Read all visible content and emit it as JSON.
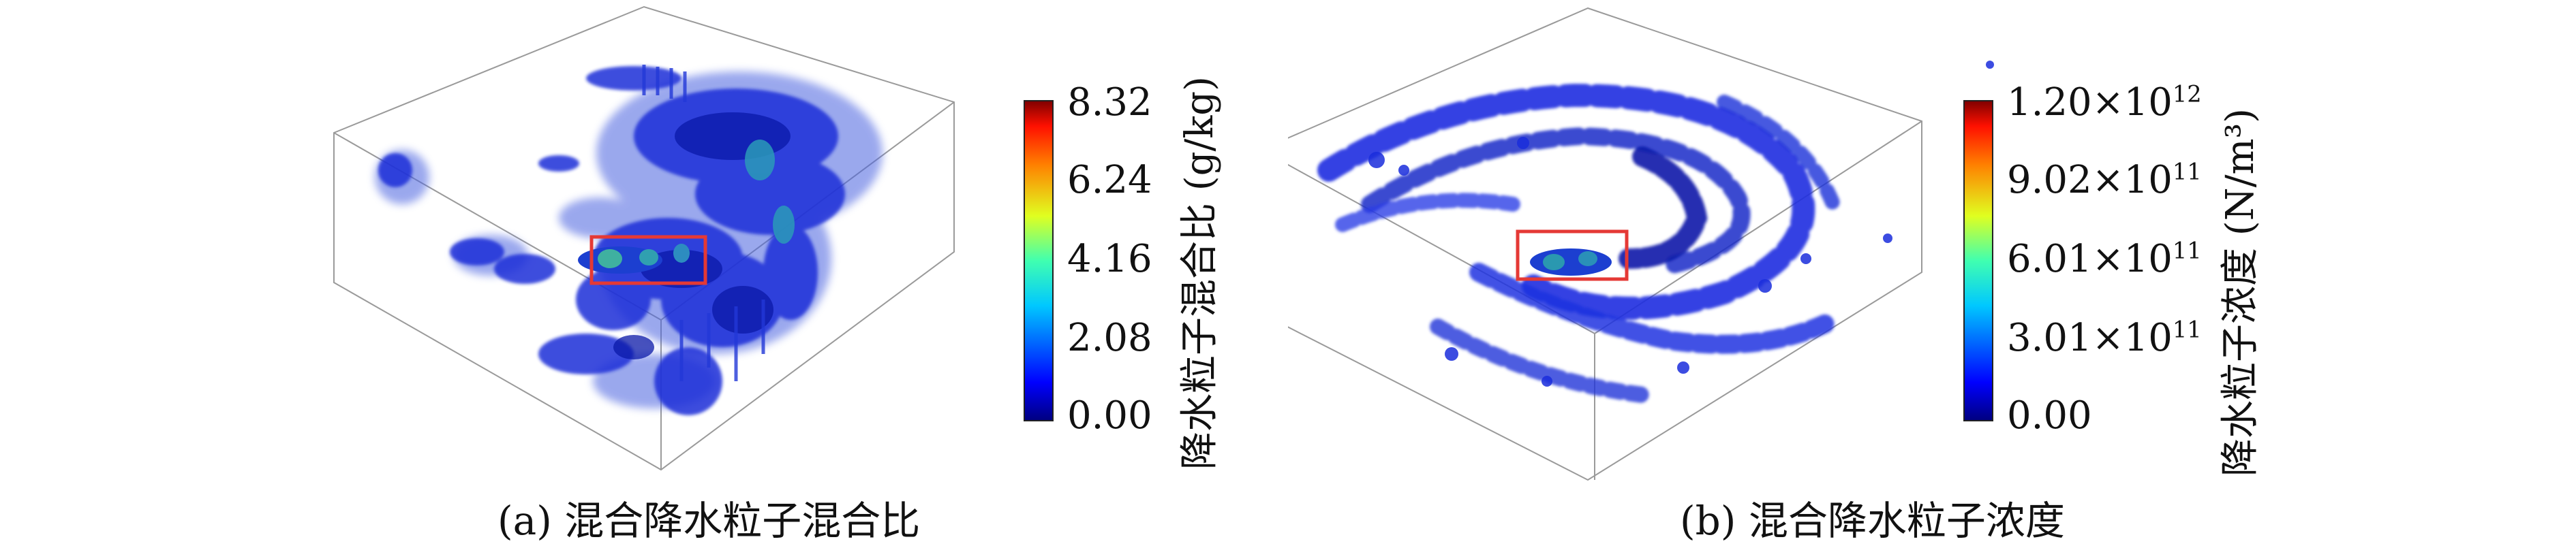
{
  "panels": [
    {
      "id": "a",
      "caption": "(a) 混合降水粒子混合比",
      "colorbar": {
        "title": "降水粒子混合比 (g/kg)",
        "ticks": [
          "8.32",
          "6.24",
          "4.16",
          "2.08",
          "0.00"
        ],
        "range": [
          0,
          8.32
        ]
      }
    },
    {
      "id": "b",
      "caption": "(b) 混合降水粒子浓度",
      "colorbar": {
        "title": "降水粒子浓度 (N/m³)",
        "ticks": [
          {
            "mantissa": "1.20×10",
            "exp": "12"
          },
          {
            "mantissa": "9.02×10",
            "exp": "11"
          },
          {
            "mantissa": "6.01×10",
            "exp": "11"
          },
          {
            "mantissa": "3.01×10",
            "exp": "11"
          },
          {
            "mantissa": "0.00",
            "exp": ""
          }
        ],
        "range": [
          0,
          1200000000000.0
        ]
      }
    }
  ],
  "colormap": [
    "#00007f",
    "#0000ff",
    "#0080ff",
    "#00ffff",
    "#80ff80",
    "#ffff00",
    "#ff8000",
    "#ff0000",
    "#7f0000"
  ],
  "highlight_color": "#e53935"
}
